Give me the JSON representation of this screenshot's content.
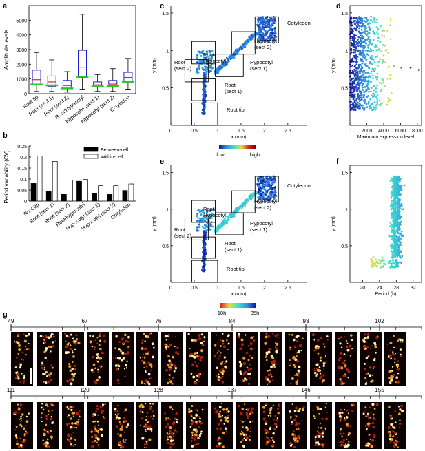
{
  "panel_letters": {
    "a": "a",
    "b": "b",
    "c": "c",
    "d": "d",
    "e": "e",
    "f": "f",
    "g": "g"
  },
  "colors": {
    "box": "#1f1fd6",
    "median": "#e02020",
    "mean": "#22cc22",
    "bar_between": "#000000",
    "bar_within": "#ffffff"
  },
  "chart_data": [
    {
      "panel": "a",
      "type": "box",
      "ylabel": "Amplitude levels",
      "ylim": [
        0,
        6000
      ],
      "yticks": [
        0,
        1000,
        2000,
        3000,
        4000,
        5000
      ],
      "categories": [
        "Root tip",
        "Root (sect 1)",
        "Root (sect 2)",
        "Root/Hypocotyl",
        "Hypocotyl (sect 1)",
        "Hypocotyl (sect 2)",
        "Cotyledon"
      ],
      "boxes": [
        {
          "min": 150,
          "q1": 650,
          "median": 950,
          "q3": 1600,
          "max": 2800,
          "mean": 620
        },
        {
          "min": 150,
          "q1": 500,
          "median": 800,
          "q3": 1200,
          "max": 2300,
          "mean": 560
        },
        {
          "min": 100,
          "q1": 350,
          "median": 550,
          "q3": 900,
          "max": 1500,
          "mean": 360
        },
        {
          "min": 300,
          "q1": 1100,
          "median": 1800,
          "q3": 2950,
          "max": 5400,
          "mean": 1150
        },
        {
          "min": 150,
          "q1": 450,
          "median": 600,
          "q3": 800,
          "max": 1300,
          "mean": 500
        },
        {
          "min": 150,
          "q1": 450,
          "median": 650,
          "q3": 900,
          "max": 1700,
          "mean": 520
        },
        {
          "min": 300,
          "q1": 800,
          "median": 1100,
          "q3": 1450,
          "max": 2400,
          "mean": 790
        }
      ]
    },
    {
      "panel": "b",
      "type": "bar",
      "ylabel": "Period variability (CV)",
      "ylim": [
        0,
        0.25
      ],
      "yticks": [
        "0",
        "0.05",
        "0.1",
        "0.15",
        "0.2",
        "0.25"
      ],
      "categories": [
        "Root tip",
        "Root (sect 1)",
        "Root (sect 2)",
        "Root/Hypocotyl",
        "Hypocotyl (sect 1)",
        "Hypocotyl (sect 2)",
        "Cotyledon"
      ],
      "series": [
        {
          "name": "Between-cell",
          "values": [
            0.08,
            0.045,
            0.03,
            0.09,
            0.035,
            0.03,
            0.048
          ]
        },
        {
          "name": "Within-cell",
          "values": [
            0.205,
            0.18,
            0.095,
            0.098,
            0.07,
            0.07,
            0.078
          ]
        }
      ]
    },
    {
      "panel": "c",
      "type": "scatter",
      "xlabel": "x (mm)",
      "ylabel": "y (mm)",
      "xlim": [
        0,
        2.9
      ],
      "ylim": [
        0,
        1.6
      ],
      "xticks": [
        "0",
        "0.5",
        "1",
        "1.5",
        "2",
        "2.5"
      ],
      "yticks": [
        "0.5",
        "1",
        "1.5"
      ],
      "colorbar": {
        "low": "low",
        "high": "high",
        "colors": [
          "#1010a0",
          "#2f8fe0",
          "#40e0d0",
          "#e0e040",
          "#e02020",
          "#700000"
        ]
      },
      "regions": [
        {
          "label": "Root tip",
          "x0": 0.45,
          "x1": 1.0,
          "y0": 0.0,
          "y1": 0.3
        },
        {
          "label": "Root (sect 1)",
          "x0": 0.45,
          "x1": 0.95,
          "y0": 0.33,
          "y1": 0.62
        },
        {
          "label": "Root (sect 2)",
          "x0": 0.3,
          "x1": 0.8,
          "y0": 0.58,
          "y1": 0.88
        },
        {
          "label": "Root/ Hypocotyl",
          "x0": 0.45,
          "x1": 0.95,
          "y0": 0.82,
          "y1": 1.12
        },
        {
          "label": "Hypocotyl (sect 1)",
          "x0": 0.95,
          "x1": 1.55,
          "y0": 0.65,
          "y1": 0.95
        },
        {
          "label": "Hypocotyl (sect 2)",
          "x0": 1.3,
          "x1": 1.8,
          "y0": 0.95,
          "y1": 1.25
        },
        {
          "label": "Cotyledon",
          "x0": 1.8,
          "x1": 2.3,
          "y0": 1.1,
          "y1": 1.45
        }
      ]
    },
    {
      "panel": "d",
      "type": "scatter",
      "xlabel": "Maximum expression level",
      "ylabel": "y (mm)",
      "xlim": [
        0,
        8500
      ],
      "ylim": [
        0,
        1.6
      ],
      "xticks": [
        "0",
        "2000",
        "4000",
        "6000",
        "8000"
      ],
      "yticks": [
        "0.5",
        "1",
        "1.5"
      ]
    },
    {
      "panel": "e",
      "type": "scatter",
      "xlabel": "x (mm)",
      "ylabel": "y (mm)",
      "xlim": [
        0,
        2.9
      ],
      "ylim": [
        0,
        1.6
      ],
      "xticks": [
        "0",
        "0.5",
        "1",
        "1.5",
        "2",
        "2.5"
      ],
      "yticks": [
        "0.5",
        "1",
        "1.5"
      ],
      "colorbar": {
        "low": "18h",
        "high": "35h",
        "colors": [
          "#e02020",
          "#e0e040",
          "#40e0d0",
          "#2f8fe0",
          "#1010a0"
        ]
      }
    },
    {
      "panel": "f",
      "type": "scatter",
      "xlabel": "Period (h)",
      "ylabel": "y (mm)",
      "xlim": [
        17,
        34
      ],
      "ylim": [
        0,
        1.6
      ],
      "xticks": [
        "20",
        "24",
        "28",
        "32"
      ],
      "yticks": [
        "0.5",
        "1",
        "1.5"
      ]
    },
    {
      "panel": "g",
      "type": "image-strip",
      "row1_labels": [
        "49",
        "67",
        "76",
        "84",
        "93",
        "102"
      ],
      "row2_labels": [
        "111",
        "120",
        "128",
        "137",
        "146",
        "155"
      ]
    }
  ]
}
